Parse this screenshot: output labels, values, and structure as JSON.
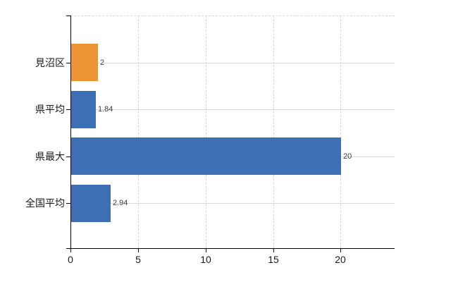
{
  "chart_data": {
    "type": "bar",
    "orientation": "horizontal",
    "title": "",
    "xlabel": "",
    "ylabel": "",
    "categories": [
      "見沼区",
      "県平均",
      "県最大",
      "全国平均"
    ],
    "values": [
      2,
      1.84,
      20,
      2.94
    ],
    "value_labels": [
      "2",
      "1.84",
      "20",
      "2.94"
    ],
    "series": [
      {
        "name": "value",
        "values": [
          2,
          1.84,
          20,
          2.94
        ],
        "colors": [
          "#ED9437",
          "#3D6FB5",
          "#3D6FB5",
          "#3D6FB5"
        ]
      }
    ],
    "x_ticks": [
      0,
      5,
      10,
      15,
      20
    ],
    "x_tick_labels": [
      "0",
      "5",
      "10",
      "15",
      "20"
    ],
    "xlim": [
      0,
      24
    ],
    "grid": true,
    "gridlines": "vertical-dashed-at-ticks, horizontal-solid-at-category-centers",
    "legend": false
  },
  "colors": {
    "highlight_bar": "#ED9437",
    "default_bar": "#3D6FB5",
    "axis": "#000000",
    "horizontal_gridline": "#d6dbd6",
    "vertical_gridline": "#d9d2d6",
    "tick_label": "#1a1a1a",
    "value_label": "#404040",
    "background": "#ffffff"
  }
}
